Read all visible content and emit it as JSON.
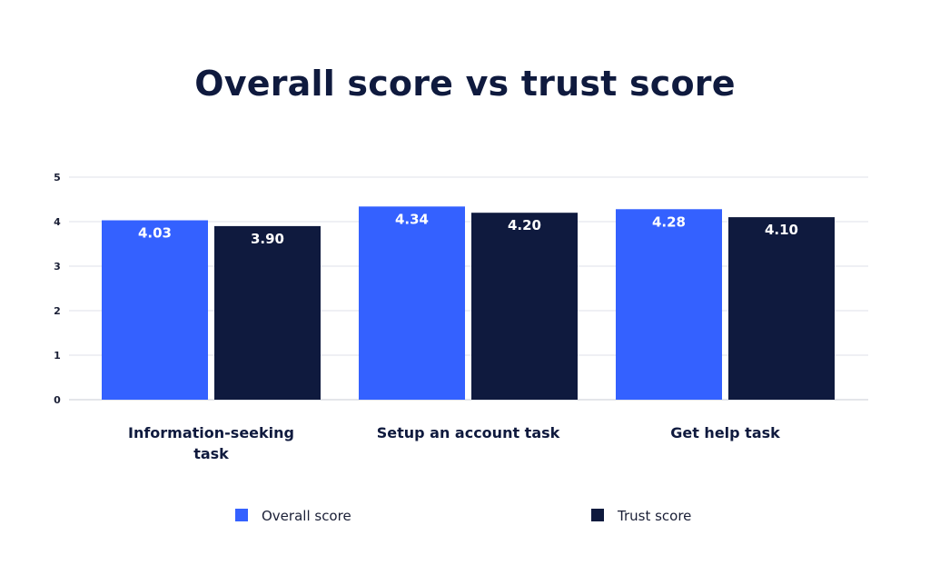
{
  "chart_data": {
    "type": "bar",
    "title": "Overall score vs trust score",
    "categories": [
      [
        "Information-seeking",
        "task"
      ],
      [
        "Setup an account task"
      ],
      [
        "Get help task"
      ]
    ],
    "series": [
      {
        "name": "Overall score",
        "color": "#3461ff",
        "values": [
          4.03,
          4.34,
          4.28
        ],
        "labels": [
          "4.03",
          "4.34",
          "4.28"
        ]
      },
      {
        "name": "Trust score",
        "color": "#0f1a3e",
        "values": [
          3.9,
          4.2,
          4.1
        ],
        "labels": [
          "3.90",
          "4.20",
          "4.10"
        ]
      }
    ],
    "ylim": [
      0,
      5
    ],
    "yticks": [
      "0",
      "1",
      "2",
      "3",
      "4",
      "5"
    ],
    "grid": true,
    "legend": "bottom"
  }
}
